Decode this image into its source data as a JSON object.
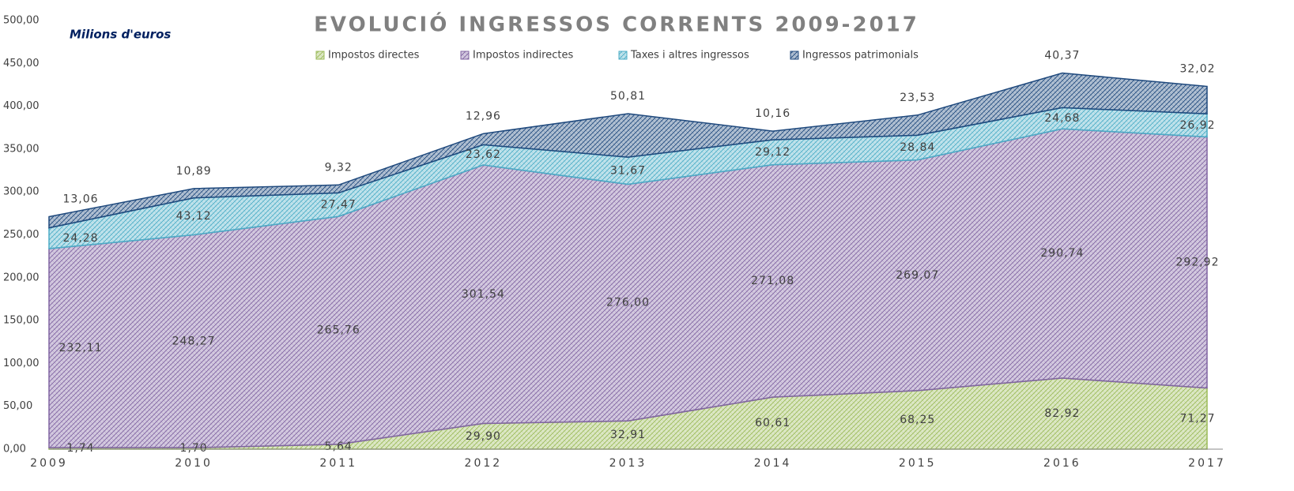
{
  "chart_data": {
    "type": "stacked_area",
    "title": "EVOLUCIÓ INGRESSOS CORRENTS 2009-2017",
    "subtitle": "Milions d'euros",
    "categories": [
      "2009",
      "2010",
      "2011",
      "2012",
      "2013",
      "2014",
      "2015",
      "2016",
      "2017"
    ],
    "series": [
      {
        "name": "Impostos directes",
        "color": "#9bbb59",
        "values": [
          1.74,
          1.7,
          5.64,
          29.9,
          32.91,
          60.61,
          68.25,
          82.92,
          71.27
        ],
        "value_labels": [
          "1,74",
          "1,70",
          "5,64",
          "29,90",
          "32,91",
          "60,61",
          "68,25",
          "82,92",
          "71,27"
        ]
      },
      {
        "name": "Impostos indirectes",
        "color": "#8064a2",
        "values": [
          232.11,
          248.27,
          265.76,
          301.54,
          276.0,
          271.08,
          269.07,
          290.74,
          292.92
        ],
        "value_labels": [
          "232,11",
          "248,27",
          "265,76",
          "301,54",
          "276,00",
          "271,08",
          "269,07",
          "290,74",
          "292,92"
        ]
      },
      {
        "name": "Taxes i altres ingressos",
        "color": "#4bacc6",
        "values": [
          24.28,
          43.12,
          27.47,
          23.62,
          31.67,
          29.12,
          28.84,
          24.68,
          26.92
        ],
        "value_labels": [
          "24,28",
          "43,12",
          "27,47",
          "23,62",
          "31,67",
          "29,12",
          "28,84",
          "24,68",
          "26,92"
        ]
      },
      {
        "name": "Ingressos patrimonials",
        "color": "#1f497d",
        "values": [
          13.06,
          10.89,
          9.32,
          12.96,
          50.81,
          10.16,
          23.53,
          40.37,
          32.02
        ],
        "value_labels": [
          "13,06",
          "10,89",
          "9,32",
          "12,96",
          "50,81",
          "10,16",
          "23,53",
          "40,37",
          "32,02"
        ]
      }
    ],
    "ylim": [
      0,
      500
    ],
    "yticks": [
      {
        "value": 0,
        "label": "0,00"
      },
      {
        "value": 50,
        "label": "50,00"
      },
      {
        "value": 100,
        "label": "100,00"
      },
      {
        "value": 150,
        "label": "150,00"
      },
      {
        "value": 200,
        "label": "200,00"
      },
      {
        "value": 250,
        "label": "250,00"
      },
      {
        "value": 300,
        "label": "300,00"
      },
      {
        "value": 350,
        "label": "350,00"
      },
      {
        "value": 400,
        "label": "400,00"
      },
      {
        "value": 450,
        "label": "450,00"
      },
      {
        "value": 500,
        "label": "500,00"
      }
    ],
    "grid": false,
    "legend": "top"
  }
}
